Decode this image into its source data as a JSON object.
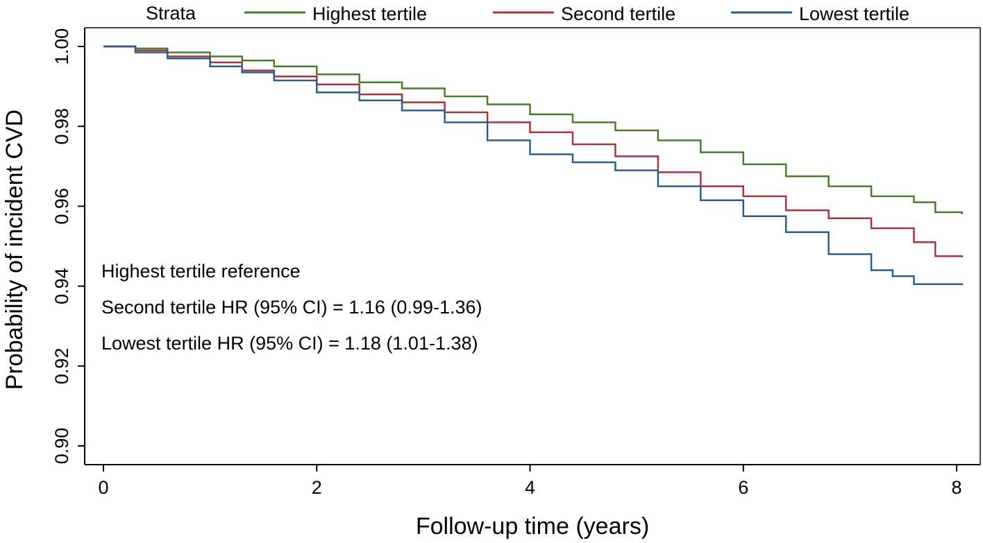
{
  "chart_data": {
    "type": "line",
    "title": "",
    "xlabel": "Follow-up time (years)",
    "ylabel": "Probability of incident CVD",
    "xlim": [
      0,
      8
    ],
    "ylim": [
      0.9,
      1.0
    ],
    "x_ticks": [
      0,
      2,
      4,
      6,
      8
    ],
    "x_tick_labels": [
      "0",
      "2",
      "4",
      "6",
      "8"
    ],
    "y_ticks": [
      0.9,
      0.92,
      0.94,
      0.96,
      0.98,
      1.0
    ],
    "y_tick_labels": [
      "0.90",
      "0.92",
      "0.94",
      "0.96",
      "0.98",
      "1.00"
    ],
    "grid": false,
    "legend": {
      "title": "Strata",
      "placement": "top",
      "entries": [
        "Highest tertile",
        "Second tertile",
        "Lowest tertile"
      ]
    },
    "series": [
      {
        "name": "Highest tertile",
        "color": "#4a7c2c",
        "x": [
          0,
          0.3,
          0.6,
          1.0,
          1.3,
          1.6,
          2.0,
          2.4,
          2.8,
          3.2,
          3.6,
          4.0,
          4.4,
          4.8,
          5.2,
          5.6,
          6.0,
          6.4,
          6.8,
          7.2,
          7.6,
          7.8,
          8.05
        ],
        "y": [
          1.0,
          0.9995,
          0.9985,
          0.9975,
          0.9965,
          0.995,
          0.993,
          0.991,
          0.9895,
          0.9875,
          0.9855,
          0.983,
          0.981,
          0.979,
          0.9765,
          0.9735,
          0.9705,
          0.9675,
          0.965,
          0.9625,
          0.961,
          0.9585,
          0.958
        ]
      },
      {
        "name": "Second tertile",
        "color": "#a8323e",
        "x": [
          0,
          0.3,
          0.6,
          1.0,
          1.3,
          1.6,
          2.0,
          2.4,
          2.8,
          3.2,
          3.6,
          4.0,
          4.4,
          4.8,
          5.2,
          5.6,
          6.0,
          6.4,
          6.8,
          7.2,
          7.6,
          7.8,
          8.05
        ],
        "y": [
          1.0,
          0.999,
          0.9975,
          0.996,
          0.994,
          0.9925,
          0.9905,
          0.988,
          0.986,
          0.9835,
          0.981,
          0.9785,
          0.9755,
          0.9725,
          0.9685,
          0.965,
          0.9625,
          0.959,
          0.957,
          0.9545,
          0.951,
          0.9475,
          0.9472
        ]
      },
      {
        "name": "Lowest tertile",
        "color": "#2b5c8e",
        "x": [
          0,
          0.3,
          0.6,
          1.0,
          1.3,
          1.6,
          2.0,
          2.4,
          2.8,
          3.2,
          3.6,
          4.0,
          4.4,
          4.8,
          5.2,
          5.6,
          6.0,
          6.4,
          6.8,
          7.2,
          7.4,
          7.6,
          8.05
        ],
        "y": [
          1.0,
          0.9985,
          0.997,
          0.995,
          0.9935,
          0.9915,
          0.9885,
          0.9865,
          0.984,
          0.981,
          0.9765,
          0.973,
          0.971,
          0.969,
          0.965,
          0.9615,
          0.9575,
          0.9535,
          0.948,
          0.944,
          0.9425,
          0.9405,
          0.9402
        ]
      }
    ],
    "annotations": [
      "Highest tertile reference",
      "Second tertile HR (95% CI) = 1.16 (0.99-1.36)",
      "Lowest tertile HR (95% CI) = 1.18 (1.01-1.38)"
    ]
  }
}
